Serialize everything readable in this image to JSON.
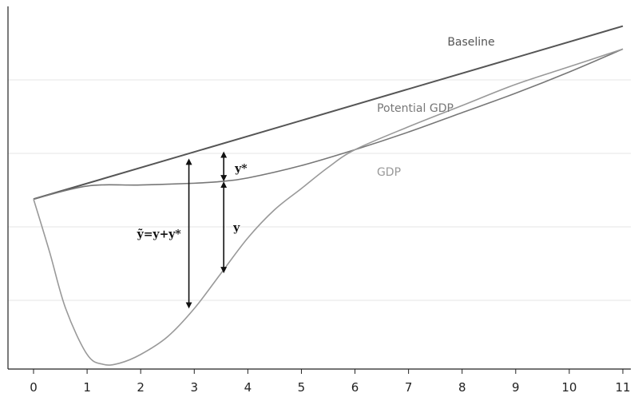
{
  "chart_data": {
    "type": "line",
    "title": "",
    "xlabel": "",
    "ylabel": "",
    "xlim": [
      0,
      11
    ],
    "ylim": [
      0,
      10
    ],
    "x_ticks": [
      "0",
      "1",
      "2",
      "3",
      "4",
      "5",
      "6",
      "7",
      "8",
      "9",
      "10",
      "11"
    ],
    "grid": true,
    "series": [
      {
        "name": "Baseline",
        "color": "#555555",
        "x": [
          0,
          11
        ],
        "y": [
          4.7,
          9.6
        ]
      },
      {
        "name": "Potential GDP",
        "color": "#777777",
        "x": [
          0,
          1,
          2,
          3,
          3.5,
          4,
          5,
          6,
          7,
          8,
          9,
          10,
          11
        ],
        "y": [
          4.7,
          5.07,
          5.1,
          5.15,
          5.2,
          5.3,
          5.65,
          6.1,
          6.6,
          7.15,
          7.7,
          8.3,
          8.95
        ]
      },
      {
        "name": "GDP",
        "color": "#999999",
        "x": [
          0,
          0.3,
          0.6,
          1,
          1.3,
          1.6,
          2,
          2.5,
          3,
          3.5,
          4,
          4.5,
          5,
          5.5,
          6,
          7,
          8,
          9,
          10,
          11
        ],
        "y": [
          4.7,
          3.2,
          1.6,
          0.3,
          0.02,
          0.05,
          0.3,
          0.8,
          1.6,
          2.6,
          3.6,
          4.4,
          5.0,
          5.6,
          6.1,
          6.75,
          7.35,
          7.95,
          8.45,
          8.95
        ]
      }
    ],
    "annotations": [
      {
        "label": "ỹ=y+y*",
        "x": 2.9,
        "y_from": 1.6,
        "y_to": 5.85
      },
      {
        "label": "y",
        "x": 3.55,
        "y_from": 2.6,
        "y_to": 5.2
      },
      {
        "label": "y*",
        "x": 3.55,
        "y_from": 5.2,
        "y_to": 6.05
      }
    ]
  }
}
